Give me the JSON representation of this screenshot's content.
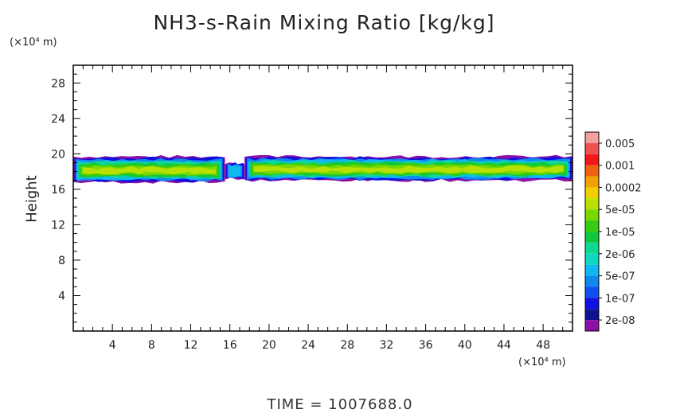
{
  "chart_data": {
    "type": "heatmap",
    "title": "NH3-s-Rain Mixing Ratio [kg/kg]",
    "ylabel": "Height",
    "yscale_note": "(×10⁴ m)",
    "xscale_note": "(×10⁴ m)",
    "footer": "TIME  =  1007688.0",
    "xlim": [
      0,
      51
    ],
    "ylim": [
      0,
      30
    ],
    "x_ticks": [
      4,
      8,
      12,
      16,
      20,
      24,
      28,
      32,
      36,
      40,
      44,
      48
    ],
    "y_ticks": [
      4,
      8,
      12,
      16,
      20,
      24,
      28
    ],
    "grid": false,
    "colorbar": {
      "labels": [
        "0.005",
        "0.001",
        "0.0002",
        "5e-05",
        "1e-05",
        "2e-06",
        "5e-07",
        "1e-07",
        "2e-08"
      ],
      "colors_top_to_bottom": [
        "#f4a0a0",
        "#f05050",
        "#f01818",
        "#f06010",
        "#f0a000",
        "#f0d000",
        "#b8e000",
        "#78d800",
        "#38cc10",
        "#10c840",
        "#10d890",
        "#10d8c0",
        "#10b8f0",
        "#1088f0",
        "#1050f0",
        "#1010e0",
        "#101090",
        "#8a10a8"
      ]
    },
    "band": {
      "segments": [
        {
          "x": [
            0,
            15.5
          ],
          "y": [
            16.8,
            19.7
          ],
          "peak": "5e-05"
        },
        {
          "x": [
            15.5,
            17.5
          ],
          "y": [
            17.2,
            19.0
          ],
          "peak": "5e-07"
        },
        {
          "x": [
            17.5,
            51
          ],
          "y": [
            17.0,
            19.7
          ],
          "peak": "5e-05"
        }
      ]
    }
  }
}
